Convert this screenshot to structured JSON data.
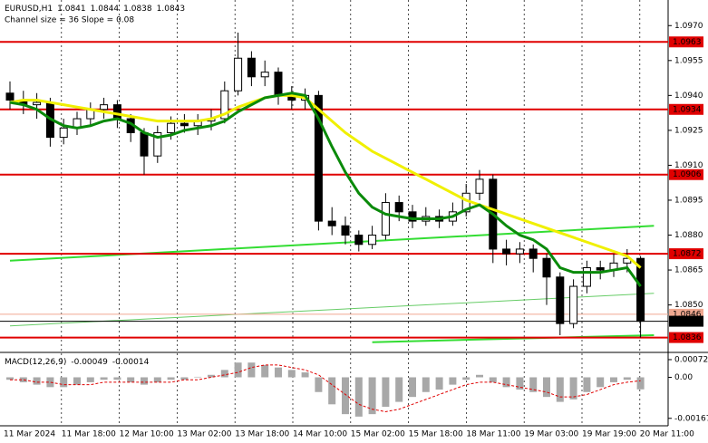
{
  "chart_data": [
    {
      "type": "candlestick",
      "title": "EURUSD,H1",
      "header_values": [
        1.0841,
        1.0844,
        1.0838,
        1.0843
      ],
      "subtitle": "Channel size = 36 Slope = 0.08",
      "ylim": [
        1.083,
        1.0981
      ],
      "yticks": [
        {
          "value": 1.097,
          "label": "1.0970"
        },
        {
          "value": 1.0955,
          "label": "1.0955"
        },
        {
          "value": 1.094,
          "label": "1.0940"
        },
        {
          "value": 1.0925,
          "label": "1.0925"
        },
        {
          "value": 1.091,
          "label": "1.0910"
        },
        {
          "value": 1.0895,
          "label": "1.0895"
        },
        {
          "value": 1.088,
          "label": "1.0880"
        },
        {
          "value": 1.0865,
          "label": "1.0865"
        },
        {
          "value": 1.085,
          "label": "1.0850"
        }
      ],
      "x_labels": [
        "11 Mar 2024",
        "11 Mar 18:00",
        "12 Mar 10:00",
        "13 Mar 02:00",
        "13 Mar 18:00",
        "14 Mar 10:00",
        "15 Mar 02:00",
        "15 Mar 18:00",
        "18 Mar 11:00",
        "19 Mar 03:00",
        "19 Mar 19:00",
        "20 Mar 11:00"
      ],
      "ohlc": [
        [
          1.0941,
          1.0946,
          1.0934,
          1.0938
        ],
        [
          1.0938,
          1.0942,
          1.0932,
          1.0936
        ],
        [
          1.0936,
          1.0941,
          1.093,
          1.0937
        ],
        [
          1.0937,
          1.0939,
          1.0918,
          1.0922
        ],
        [
          1.0922,
          1.093,
          1.0919,
          1.0926
        ],
        [
          1.0926,
          1.0933,
          1.0923,
          1.093
        ],
        [
          1.093,
          1.0937,
          1.0927,
          1.0934
        ],
        [
          1.0934,
          1.0939,
          1.093,
          1.0936
        ],
        [
          1.0936,
          1.0938,
          1.0926,
          1.093
        ],
        [
          1.093,
          1.0932,
          1.092,
          1.0924
        ],
        [
          1.0924,
          1.0926,
          1.0906,
          1.0914
        ],
        [
          1.0914,
          1.0927,
          1.0911,
          1.0924
        ],
        [
          1.0924,
          1.0931,
          1.0921,
          1.0928
        ],
        [
          1.0928,
          1.0932,
          1.0924,
          1.0927
        ],
        [
          1.0927,
          1.0932,
          1.0923,
          1.0929
        ],
        [
          1.0929,
          1.0934,
          1.0925,
          1.093
        ],
        [
          1.093,
          1.0946,
          1.0928,
          1.0942
        ],
        [
          1.0942,
          1.0967,
          1.094,
          1.0956
        ],
        [
          1.0956,
          1.0959,
          1.0944,
          1.0948
        ],
        [
          1.0948,
          1.0955,
          1.0944,
          1.095
        ],
        [
          1.095,
          1.0952,
          1.0936,
          1.094
        ],
        [
          1.094,
          1.0944,
          1.0934,
          1.0938
        ],
        [
          1.0938,
          1.0943,
          1.0934,
          1.094
        ],
        [
          1.094,
          1.0942,
          1.0882,
          1.0886
        ],
        [
          1.0886,
          1.0892,
          1.088,
          1.0884
        ],
        [
          1.0884,
          1.0888,
          1.0876,
          1.088
        ],
        [
          1.088,
          1.0882,
          1.0873,
          1.0876
        ],
        [
          1.0876,
          1.0884,
          1.0874,
          1.088
        ],
        [
          1.088,
          1.0898,
          1.0878,
          1.0894
        ],
        [
          1.0894,
          1.0897,
          1.0886,
          1.089
        ],
        [
          1.089,
          1.0893,
          1.0883,
          1.0886
        ],
        [
          1.0886,
          1.0892,
          1.0884,
          1.0888
        ],
        [
          1.0888,
          1.0891,
          1.0883,
          1.0886
        ],
        [
          1.0886,
          1.0894,
          1.0884,
          1.089
        ],
        [
          1.089,
          1.0902,
          1.0888,
          1.0898
        ],
        [
          1.0898,
          1.0908,
          1.0895,
          1.0904
        ],
        [
          1.0904,
          1.0906,
          1.0868,
          1.0874
        ],
        [
          1.0874,
          1.0878,
          1.0867,
          1.0872
        ],
        [
          1.0872,
          1.0877,
          1.0868,
          1.0874
        ],
        [
          1.0874,
          1.0876,
          1.0864,
          1.087
        ],
        [
          1.087,
          1.0872,
          1.085,
          1.0862
        ],
        [
          1.0862,
          1.0864,
          1.0837,
          1.0842
        ],
        [
          1.0842,
          1.0861,
          1.084,
          1.0858
        ],
        [
          1.0858,
          1.0869,
          1.0855,
          1.0866
        ],
        [
          1.0866,
          1.0869,
          1.0861,
          1.0865
        ],
        [
          1.0865,
          1.0872,
          1.0862,
          1.0868
        ],
        [
          1.0868,
          1.0874,
          1.0864,
          1.087
        ],
        [
          1.087,
          1.0871,
          1.0836,
          1.0843
        ]
      ],
      "series": [
        {
          "color": "#f0f000",
          "width": 3,
          "values": [
            1.0937,
            1.0938,
            1.0938,
            1.0937,
            1.0936,
            1.0935,
            1.0934,
            1.0933,
            1.0932,
            1.0931,
            1.093,
            1.0929,
            1.0929,
            1.0929,
            1.0929,
            1.093,
            1.0932,
            1.0935,
            1.0937,
            1.0939,
            1.094,
            1.094,
            1.0939,
            1.0934,
            1.0929,
            1.0924,
            1.092,
            1.0916,
            1.0913,
            1.091,
            1.0907,
            1.0904,
            1.0901,
            1.0898,
            1.0895,
            1.0893,
            1.0891,
            1.0889,
            1.0887,
            1.0885,
            1.0883,
            1.0881,
            1.0879,
            1.0877,
            1.0875,
            1.0873,
            1.0871,
            1.0866
          ]
        },
        {
          "color": "#0a8a0a",
          "width": 3,
          "values": [
            1.0937,
            1.0936,
            1.0934,
            1.093,
            1.0927,
            1.0926,
            1.0927,
            1.0929,
            1.093,
            1.0928,
            1.0924,
            1.0922,
            1.0923,
            1.0925,
            1.0926,
            1.0927,
            1.0929,
            1.0933,
            1.0936,
            1.0939,
            1.094,
            1.0941,
            1.094,
            1.093,
            1.0918,
            1.0907,
            1.0898,
            1.0892,
            1.0889,
            1.0888,
            1.0887,
            1.0887,
            1.0887,
            1.0888,
            1.0891,
            1.0893,
            1.0889,
            1.0884,
            1.088,
            1.0878,
            1.0874,
            1.0866,
            1.0864,
            1.0864,
            1.0864,
            1.0865,
            1.0866,
            1.0858
          ]
        }
      ],
      "trendlines": [
        {
          "color": "#33dd33",
          "width": 2,
          "x": [
            0,
            48
          ],
          "values": [
            1.0869,
            1.0884
          ]
        },
        {
          "color": "#33dd33",
          "width": 2,
          "x": [
            27,
            48
          ],
          "values": [
            1.0834,
            1.0837
          ]
        },
        {
          "color": "#66cc66",
          "width": 1,
          "x": [
            0,
            48
          ],
          "values": [
            1.0841,
            1.0855
          ]
        }
      ],
      "levels": [
        {
          "value": 1.0963,
          "color": "#e00000",
          "text_color": "#ffffff"
        },
        {
          "value": 1.0934,
          "color": "#e00000",
          "text_color": "#ffffff"
        },
        {
          "value": 1.0906,
          "color": "#e00000",
          "text_color": "#ffffff"
        },
        {
          "value": 1.0872,
          "color": "#e00000",
          "text_color": "#ffffff"
        },
        {
          "value": 1.0836,
          "color": "#e00000",
          "text_color": "#ffffff"
        },
        {
          "value": 1.0846,
          "color": "#f0a890",
          "text_color": "#ffffff"
        },
        {
          "value": 1.0843,
          "color": "#000000",
          "text_color": "#ffffff"
        }
      ]
    },
    {
      "type": "macd",
      "title": "MACD(12,26,9)",
      "header_values": [
        -0.00049,
        -0.00014
      ],
      "ylim": [
        -0.0019,
        0.00094
      ],
      "yticks": [
        0.00072,
        {
          "value": 0,
          "label": "0.00"
        },
        -0.00167
      ],
      "series": [
        {
          "color": "#a8a8a8",
          "values": [
            -0.0001,
            -0.0002,
            -0.0003,
            -0.0004,
            -0.0004,
            -0.0003,
            -0.0002,
            -0.0001,
            -0.0001,
            -0.0002,
            -0.0003,
            -0.0002,
            -0.0001,
            -0.0001,
            2e-05,
            0.0001,
            0.0003,
            0.0006,
            0.0006,
            0.0005,
            0.0004,
            0.0003,
            0.0002,
            -0.0006,
            -0.0011,
            -0.0015,
            -0.0016,
            -0.0015,
            -0.0012,
            -0.001,
            -0.0008,
            -0.0006,
            -0.0005,
            -0.0003,
            -0.0001,
            0.0001,
            -0.0002,
            -0.0004,
            -0.0005,
            -0.0006,
            -0.0008,
            -0.001,
            -0.0009,
            -0.0006,
            -0.0004,
            -0.0002,
            -0.0001,
            -0.00049
          ]
        },
        {
          "color": "#e00000",
          "values": [
            -0.0001,
            -0.0001,
            -0.0002,
            -0.0002,
            -0.0003,
            -0.0003,
            -0.0003,
            -0.0002,
            -0.0002,
            -0.0002,
            -0.0002,
            -0.0002,
            -0.0002,
            -0.0001,
            -0.0001,
            0,
            0.0001,
            0.0002,
            0.0004,
            0.0005,
            0.0005,
            0.0004,
            0.0003,
            0.0001,
            -0.0003,
            -0.0007,
            -0.0011,
            -0.0013,
            -0.0014,
            -0.0013,
            -0.0011,
            -0.0009,
            -0.0007,
            -0.0005,
            -0.0003,
            -0.0002,
            -0.0002,
            -0.0003,
            -0.0004,
            -0.0005,
            -0.0006,
            -0.0008,
            -0.0008,
            -0.0007,
            -0.0005,
            -0.0003,
            -0.0002,
            -0.00014
          ]
        }
      ]
    }
  ]
}
